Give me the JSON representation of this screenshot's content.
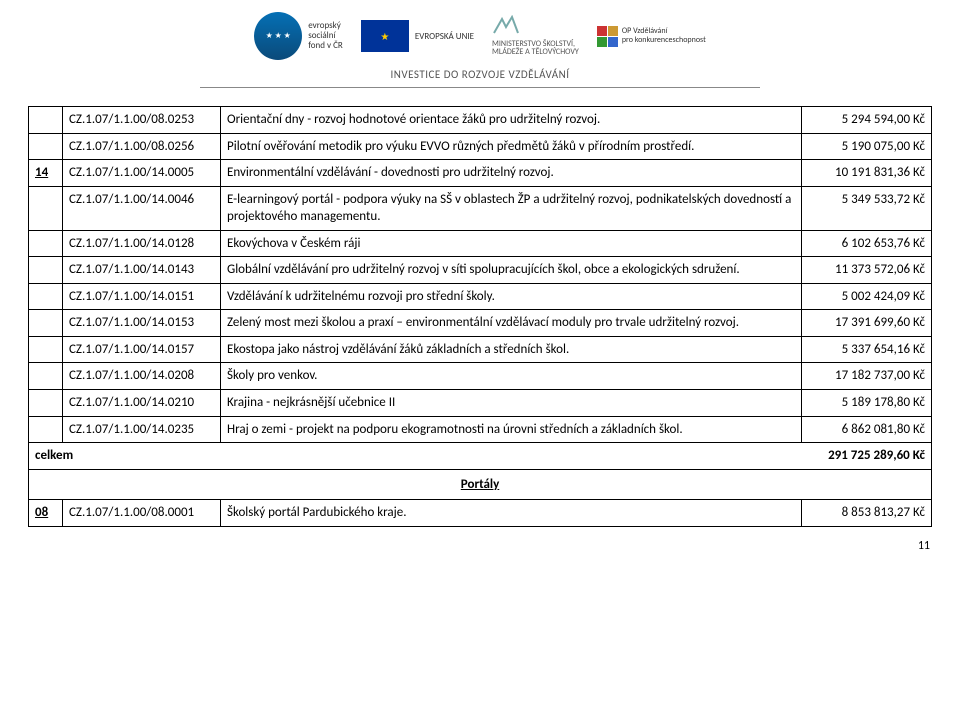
{
  "header": {
    "esf_lines": [
      "evropský",
      "sociální",
      "fond v ČR"
    ],
    "eu_label": "EVROPSKÁ UNIE",
    "msmt_lines": [
      "MINISTERSTVO ŠKOLSTVÍ,",
      "MLÁDEŽE A TĚLOVÝCHOVY"
    ],
    "op_lines": [
      "OP Vzdělávání",
      "pro konkurenceschopnost"
    ],
    "invest": "INVESTICE DO ROZVOJE VZDĚLÁVÁNÍ"
  },
  "rows": [
    {
      "num": "",
      "code": "CZ.1.07/1.1.00/08.0253",
      "desc": "Orientační dny - rozvoj hodnotové orientace žáků pro udržitelný rozvoj.",
      "amt": "5 294 594,00 Kč"
    },
    {
      "num": "",
      "code": "CZ.1.07/1.1.00/08.0256",
      "desc": "Pilotní ověřování metodik pro výuku EVVO různých předmětů žáků v přírodním prostředí.",
      "amt": "5 190 075,00 Kč"
    },
    {
      "num": "14",
      "code": "CZ.1.07/1.1.00/14.0005",
      "desc": "Environmentální vzdělávání - dovednosti pro udržitelný rozvoj.",
      "amt": "10 191 831,36 Kč",
      "num_underline": true
    },
    {
      "num": "",
      "code": "CZ.1.07/1.1.00/14.0046",
      "desc": "E-learningový portál - podpora výuky na SŠ v oblastech ŽP a udržitelný rozvoj, podnikatelských dovedností a projektového managementu.",
      "amt": "5 349 533,72 Kč"
    },
    {
      "num": "",
      "code": "CZ.1.07/1.1.00/14.0128",
      "desc": "Ekovýchova v Českém ráji",
      "amt": "6 102 653,76 Kč"
    },
    {
      "num": "",
      "code": "CZ.1.07/1.1.00/14.0143",
      "desc": "Globální vzdělávání pro udržitelný rozvoj v síti spolupracujících škol, obce a ekologických sdružení.",
      "amt": "11 373 572,06 Kč"
    },
    {
      "num": "",
      "code": "CZ.1.07/1.1.00/14.0151",
      "desc": "Vzdělávání k udržitelnému rozvoji pro střední školy.",
      "amt": "5 002 424,09 Kč"
    },
    {
      "num": "",
      "code": "CZ.1.07/1.1.00/14.0153",
      "desc": "Zelený most mezi školou a praxí – environmentální vzdělávací moduly pro trvale udržitelný rozvoj.",
      "amt": "17 391 699,60 Kč"
    },
    {
      "num": "",
      "code": "CZ.1.07/1.1.00/14.0157",
      "desc": "Ekostopa jako nástroj vzdělávání žáků základních a středních škol.",
      "amt": "5 337 654,16 Kč"
    },
    {
      "num": "",
      "code": "CZ.1.07/1.1.00/14.0208",
      "desc": "Školy pro venkov.",
      "amt": "17 182 737,00 Kč"
    },
    {
      "num": "",
      "code": "CZ.1.07/1.1.00/14.0210",
      "desc": "Krajina - nejkrásnější učebnice II",
      "amt": "5 189 178,80 Kč"
    },
    {
      "num": "",
      "code": "CZ.1.07/1.1.00/14.0235",
      "desc": "Hraj o zemi - projekt na podporu ekogramotnosti na úrovni středních a základních škol.",
      "amt": "6 862 081,80 Kč"
    }
  ],
  "total": {
    "label": "celkem",
    "amt": "291 725 289,60 Kč"
  },
  "section2": {
    "title": "Portály"
  },
  "rows2": [
    {
      "num": "08",
      "code": "CZ.1.07/1.1.00/08.0001",
      "desc": "Školský portál Pardubického kraje.",
      "amt": "8 853 813,27 Kč",
      "num_underline": true
    }
  ],
  "page_number": "11"
}
